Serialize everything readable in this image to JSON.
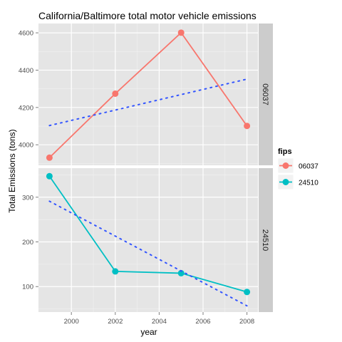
{
  "chart_data": {
    "type": "line",
    "title": "California/Baltimore total motor vehicle emissions",
    "xlabel": "year",
    "ylabel": "Total Emissions (tons)",
    "x_ticks": [
      2000,
      2002,
      2004,
      2006,
      2008
    ],
    "xlim": [
      1998.5,
      2008.5
    ],
    "legend": {
      "title": "fips",
      "position": "right"
    },
    "panels": [
      {
        "strip": "06037",
        "ylim": [
          3890,
          4650
        ],
        "y_ticks": [
          4000,
          4200,
          4400,
          4600
        ],
        "series": [
          {
            "name": "06037",
            "color": "#F8766D",
            "x": [
              1999,
              2002,
              2005,
              2008
            ],
            "y": [
              3931,
              4274,
              4601,
              4101
            ]
          }
        ],
        "trend": {
          "color": "#3355FF",
          "x": [
            1999,
            2008
          ],
          "y": [
            4103,
            4352
          ]
        }
      },
      {
        "strip": "24510",
        "ylim": [
          43,
          365
        ],
        "y_ticks": [
          100,
          200,
          300
        ],
        "series": [
          {
            "name": "24510",
            "color": "#00BFC4",
            "x": [
              1999,
              2002,
              2005,
              2008
            ],
            "y": [
              347,
              134,
              130,
              88
            ]
          }
        ],
        "trend": {
          "color": "#3355FF",
          "x": [
            1999,
            2008
          ],
          "y": [
            291,
            57
          ]
        }
      }
    ]
  }
}
